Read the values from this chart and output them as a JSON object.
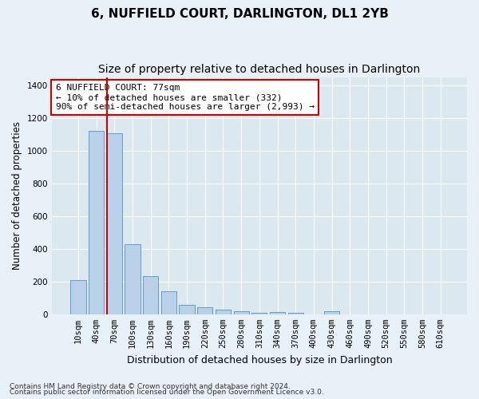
{
  "title": "6, NUFFIELD COURT, DARLINGTON, DL1 2YB",
  "subtitle": "Size of property relative to detached houses in Darlington",
  "xlabel": "Distribution of detached houses by size in Darlington",
  "ylabel": "Number of detached properties",
  "categories": [
    "10sqm",
    "40sqm",
    "70sqm",
    "100sqm",
    "130sqm",
    "160sqm",
    "190sqm",
    "220sqm",
    "250sqm",
    "280sqm",
    "310sqm",
    "340sqm",
    "370sqm",
    "400sqm",
    "430sqm",
    "460sqm",
    "490sqm",
    "520sqm",
    "550sqm",
    "580sqm",
    "610sqm"
  ],
  "values": [
    210,
    1120,
    1105,
    430,
    235,
    140,
    60,
    42,
    28,
    18,
    10,
    13,
    10,
    0,
    20,
    0,
    0,
    0,
    0,
    0,
    0
  ],
  "bar_color": "#b8d0e8",
  "bar_edgecolor": "#6699cc",
  "vline_color": "#cc0000",
  "annotation_text": "6 NUFFIELD COURT: 77sqm\n← 10% of detached houses are smaller (332)\n90% of semi-detached houses are larger (2,993) →",
  "annotation_box_facecolor": "#ffffff",
  "annotation_box_edgecolor": "#cc0000",
  "ylim": [
    0,
    1450
  ],
  "yticks": [
    0,
    200,
    400,
    600,
    800,
    1000,
    1200,
    1400
  ],
  "plot_bg_color": "#dce8f0",
  "grid_color": "#ffffff",
  "fig_bg_color": "#e8f0f8",
  "footnote1": "Contains HM Land Registry data © Crown copyright and database right 2024.",
  "footnote2": "Contains public sector information licensed under the Open Government Licence v3.0.",
  "title_fontsize": 11,
  "subtitle_fontsize": 10,
  "annotation_fontsize": 8,
  "tick_fontsize": 7.5,
  "ylabel_fontsize": 8.5,
  "xlabel_fontsize": 9,
  "footnote_fontsize": 6.5
}
